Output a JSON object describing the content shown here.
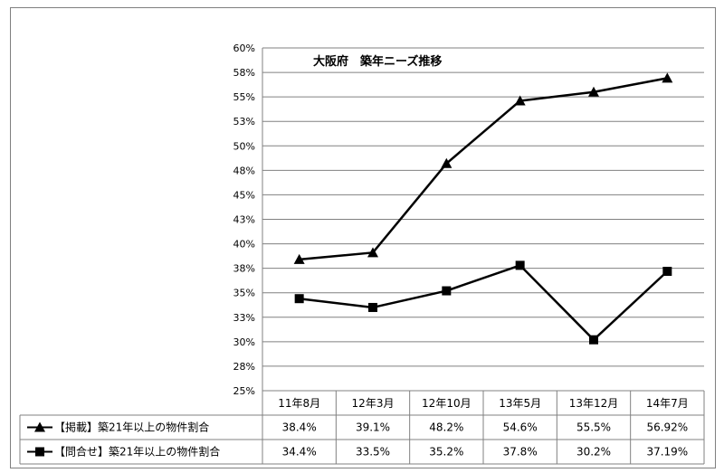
{
  "chart_data": {
    "type": "line",
    "title": "大阪府　築年ニーズ推移",
    "categories": [
      "11年8月",
      "12年3月",
      "12年10月",
      "13年5月",
      "13年12月",
      "14年7月"
    ],
    "y_ticks": [
      "60%",
      "58%",
      "55%",
      "53%",
      "50%",
      "48%",
      "45%",
      "43%",
      "40%",
      "38%",
      "35%",
      "33%",
      "30%",
      "28%",
      "25%"
    ],
    "ylim": [
      25,
      60
    ],
    "grid": true,
    "series": [
      {
        "name": "【掲載】築21年以上の物件割合",
        "marker": "triangle",
        "values": [
          38.4,
          39.1,
          48.2,
          54.6,
          55.5,
          56.92
        ],
        "labels": [
          "38.4%",
          "39.1%",
          "48.2%",
          "54.6%",
          "55.5%",
          "56.92%"
        ]
      },
      {
        "name": "【問合せ】築21年以上の物件割合",
        "marker": "square",
        "values": [
          34.4,
          33.5,
          35.2,
          37.8,
          30.2,
          37.19
        ],
        "labels": [
          "34.4%",
          "33.5%",
          "35.2%",
          "37.8%",
          "30.2%",
          "37.19%"
        ]
      }
    ],
    "colors": {
      "line": "#000000",
      "grid": "#808080",
      "border": "#7f7f7f"
    }
  }
}
